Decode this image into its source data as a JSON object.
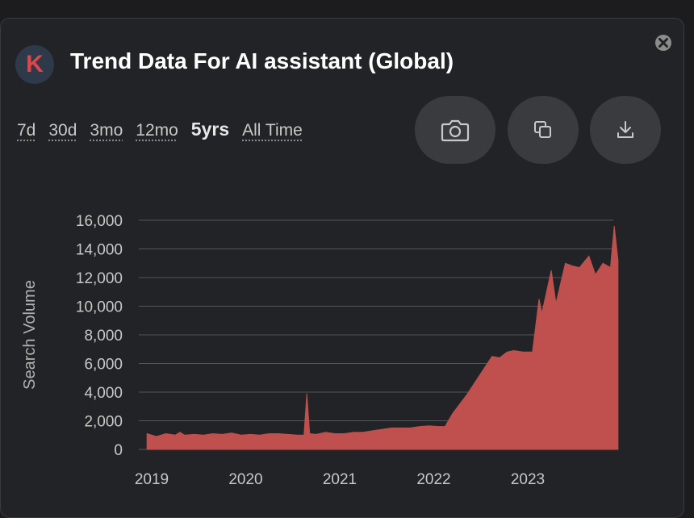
{
  "header": {
    "logo_letter": "K",
    "title": "Trend Data For AI assistant (Global)"
  },
  "close_icon": "close-icon",
  "time_ranges": [
    {
      "label": "7d",
      "active": false
    },
    {
      "label": "30d",
      "active": false
    },
    {
      "label": "3mo",
      "active": false
    },
    {
      "label": "12mo",
      "active": false
    },
    {
      "label": "5yrs",
      "active": true
    },
    {
      "label": "All Time",
      "active": false
    }
  ],
  "toolbar": {
    "screenshot_icon": "camera-icon",
    "copy_icon": "copy-icon",
    "download_icon": "download-icon"
  },
  "colors": {
    "area_fill": "#c0504d",
    "grid": "#55565a",
    "background": "#222326",
    "active_range": "#e8e8e8"
  },
  "chart_data": {
    "type": "area",
    "title": "",
    "xlabel": "",
    "ylabel": "Search Volume",
    "x_tick_labels": [
      "2019",
      "2020",
      "2021",
      "2022",
      "2023"
    ],
    "x_tick_values": [
      2019,
      2020,
      2021,
      2022,
      2023
    ],
    "y_tick_labels": [
      "0",
      "2,000",
      "4,000",
      "6,000",
      "8,000",
      "10,000",
      "12,000",
      "14,000",
      "16,000"
    ],
    "y_tick_values": [
      0,
      2000,
      4000,
      6000,
      8000,
      10000,
      12000,
      14000,
      16000
    ],
    "ylim": [
      0,
      16000
    ],
    "grid": true,
    "series": [
      {
        "x": [
          2018.95,
          2019.05,
          2019.15,
          2019.25,
          2019.3,
          2019.35,
          2019.45,
          2019.55,
          2019.65,
          2019.75,
          2019.85,
          2019.95,
          2020.05,
          2020.15,
          2020.25,
          2020.35,
          2020.45,
          2020.55,
          2020.62,
          2020.65,
          2020.68,
          2020.75,
          2020.85,
          2020.95,
          2021.05,
          2021.15,
          2021.25,
          2021.35,
          2021.45,
          2021.55,
          2021.65,
          2021.75,
          2021.85,
          2021.95,
          2022.05,
          2022.12,
          2022.2,
          2022.28,
          2022.35,
          2022.45,
          2022.55,
          2022.62,
          2022.7,
          2022.78,
          2022.85,
          2022.95,
          2023.05,
          2023.12,
          2023.15,
          2023.25,
          2023.3,
          2023.4,
          2023.48,
          2023.55,
          2023.65,
          2023.72,
          2023.8,
          2023.88,
          2023.92,
          2023.96
        ],
        "y": [
          1100,
          900,
          1100,
          1000,
          1200,
          1000,
          1050,
          1000,
          1100,
          1050,
          1150,
          1000,
          1050,
          1000,
          1100,
          1100,
          1050,
          1000,
          1000,
          3900,
          1100,
          1050,
          1200,
          1100,
          1100,
          1200,
          1200,
          1300,
          1400,
          1500,
          1500,
          1500,
          1600,
          1650,
          1600,
          1600,
          2500,
          3200,
          3800,
          4800,
          5800,
          6500,
          6400,
          6800,
          6900,
          6800,
          6800,
          10500,
          9500,
          12500,
          10200,
          13000,
          12800,
          12700,
          13500,
          12200,
          13000,
          12700,
          15600,
          13200
        ]
      }
    ]
  }
}
